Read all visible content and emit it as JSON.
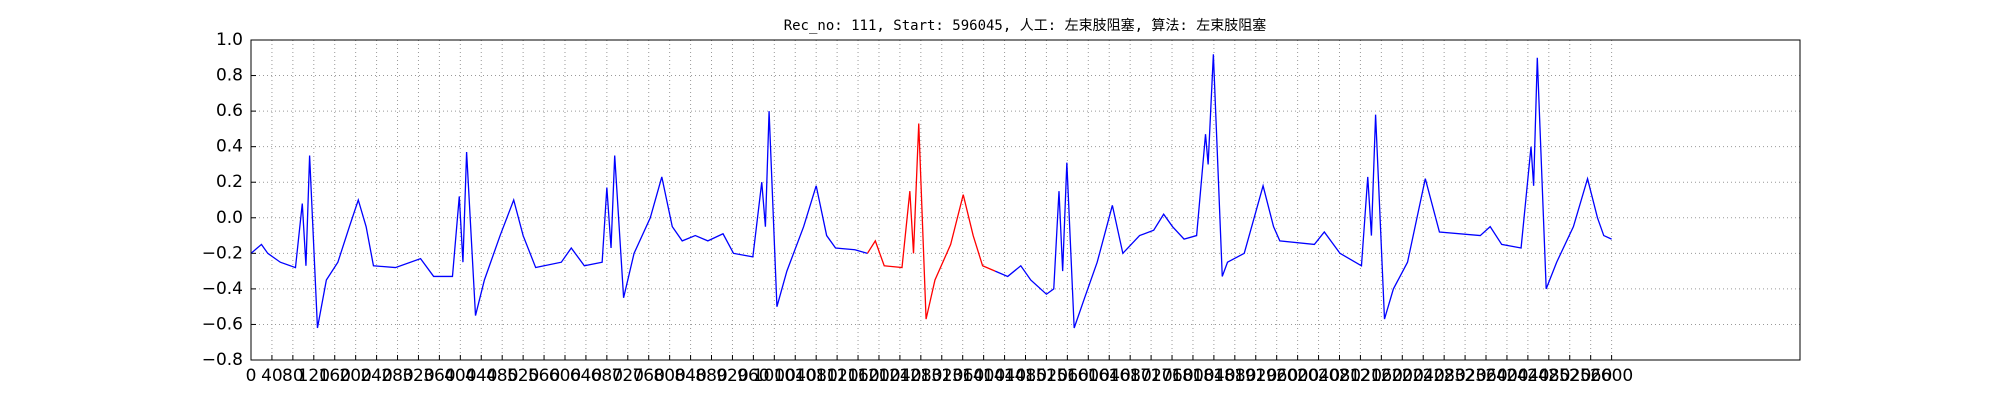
{
  "chart_data": {
    "type": "line",
    "title": "Rec_no: 111, Start: 596045, 人工: 左束肢阻塞, 算法: 左束肢阻塞",
    "x": [
      0,
      20,
      32,
      56,
      85,
      98,
      105,
      112,
      127,
      144,
      166,
      188,
      205,
      220,
      234,
      276,
      324,
      349,
      385,
      398,
      405,
      412,
      429,
      446,
      476,
      502,
      520,
      544,
      593,
      612,
      637,
      671,
      680,
      688,
      695,
      712,
      732,
      763,
      785,
      805,
      824,
      849,
      873,
      902,
      922,
      959,
      976,
      983,
      990,
      1005,
      1024,
      1056,
      1080,
      1100,
      1117,
      1154,
      1178,
      1193,
      1210,
      1244,
      1259,
      1266,
      1276,
      1290,
      1307,
      1337,
      1361,
      1380,
      1398,
      1422,
      1446,
      1471,
      1490,
      1520,
      1534,
      1544,
      1551,
      1559,
      1573,
      1593,
      1617,
      1646,
      1666,
      1698,
      1725,
      1744,
      1761,
      1783,
      1807,
      1824,
      1829,
      1839,
      1856,
      1866,
      1898,
      1934,
      1954,
      1966,
      2032,
      2051,
      2081,
      2122,
      2134,
      2141,
      2149,
      2166,
      2183,
      2210,
      2244,
      2271,
      2349,
      2368,
      2390,
      2427,
      2446,
      2451,
      2458,
      2475,
      2495,
      2527,
      2554,
      2573,
      2585,
      2600
    ],
    "series": [
      {
        "color": "#0000ff",
        "values": [
          -0.2,
          -0.15,
          -0.2,
          -0.25,
          -0.28,
          0.08,
          -0.27,
          0.35,
          -0.62,
          -0.35,
          -0.25,
          -0.05,
          0.1,
          -0.05,
          -0.27,
          -0.28,
          -0.23,
          -0.33,
          -0.33,
          0.12,
          -0.25,
          0.37,
          -0.55,
          -0.35,
          -0.1,
          0.1,
          -0.1,
          -0.28,
          -0.25,
          -0.17,
          -0.27,
          -0.25,
          0.17,
          -0.17,
          0.35,
          -0.45,
          -0.2,
          0.0,
          0.23,
          -0.05,
          -0.13,
          -0.1,
          -0.13,
          -0.09,
          -0.2,
          -0.22,
          0.2,
          -0.05,
          0.6,
          -0.5,
          -0.3,
          -0.05,
          0.18,
          -0.1,
          -0.17,
          -0.18,
          -0.2,
          null,
          null,
          null,
          null,
          null,
          null,
          null,
          null,
          null,
          null,
          null,
          null,
          -0.3,
          -0.33,
          -0.27,
          -0.35,
          -0.43,
          -0.4,
          0.15,
          -0.3,
          0.31,
          -0.62,
          -0.45,
          -0.25,
          0.07,
          -0.2,
          -0.1,
          -0.07,
          0.02,
          -0.05,
          -0.12,
          -0.1,
          0.47,
          0.3,
          0.92,
          -0.33,
          -0.25,
          -0.2,
          0.18,
          -0.05,
          -0.13,
          -0.15,
          -0.08,
          -0.2,
          -0.27,
          0.23,
          -0.1,
          0.58,
          -0.57,
          -0.4,
          -0.25,
          0.22,
          -0.08,
          -0.1,
          -0.05,
          -0.15,
          -0.17,
          0.4,
          0.18,
          0.9,
          -0.4,
          -0.25,
          -0.05,
          0.22,
          0.0,
          -0.1,
          -0.12
        ]
      },
      {
        "color": "#ff0000",
        "values": [
          null,
          null,
          null,
          null,
          null,
          null,
          null,
          null,
          null,
          null,
          null,
          null,
          null,
          null,
          null,
          null,
          null,
          null,
          null,
          null,
          null,
          null,
          null,
          null,
          null,
          null,
          null,
          null,
          null,
          null,
          null,
          null,
          null,
          null,
          null,
          null,
          null,
          null,
          null,
          null,
          null,
          null,
          null,
          null,
          null,
          null,
          null,
          null,
          null,
          null,
          null,
          null,
          null,
          null,
          null,
          null,
          -0.2,
          -0.13,
          -0.27,
          -0.28,
          0.15,
          -0.2,
          0.53,
          -0.57,
          -0.35,
          -0.15,
          0.13,
          -0.1,
          -0.27,
          -0.3,
          null,
          null,
          null,
          null,
          null,
          null,
          null,
          null,
          null,
          null,
          null,
          null,
          null,
          null,
          null,
          null,
          null,
          null,
          null,
          null,
          null,
          null,
          null,
          null,
          null,
          null,
          null,
          null,
          null,
          null,
          null,
          null,
          null,
          null,
          null,
          null,
          null,
          null,
          null,
          null,
          null,
          null,
          null,
          null,
          null,
          null,
          null,
          null,
          null,
          null,
          null,
          null,
          null,
          null
        ]
      }
    ],
    "xlim": [
      0,
      2960
    ],
    "ylim": [
      -0.8,
      1.0
    ],
    "xticks": [
      0,
      40,
      80,
      120,
      160,
      200,
      240,
      280,
      320,
      360,
      400,
      440,
      480,
      520,
      560,
      600,
      640,
      680,
      720,
      760,
      800,
      840,
      880,
      920,
      960,
      1000,
      1040,
      1080,
      1120,
      1160,
      1200,
      1240,
      1280,
      1320,
      1360,
      1400,
      1440,
      1480,
      1520,
      1560,
      1600,
      1640,
      1680,
      1720,
      1760,
      1800,
      1840,
      1880,
      1920,
      1960,
      2000,
      2040,
      2080,
      2120,
      2160,
      2200,
      2240,
      2280,
      2320,
      2360,
      2400,
      2440,
      2480,
      2520,
      2560,
      2600
    ],
    "yticks": [
      {
        "value": -0.8,
        "label": "−0.8"
      },
      {
        "value": -0.6,
        "label": "−0.6"
      },
      {
        "value": -0.4,
        "label": "−0.4"
      },
      {
        "value": -0.2,
        "label": "−0.2"
      },
      {
        "value": 0,
        "label": "0.0"
      },
      0.2,
      0.4,
      0.6,
      0.8,
      {
        "value": 1,
        "label": "1.0"
      }
    ],
    "grid": true
  }
}
